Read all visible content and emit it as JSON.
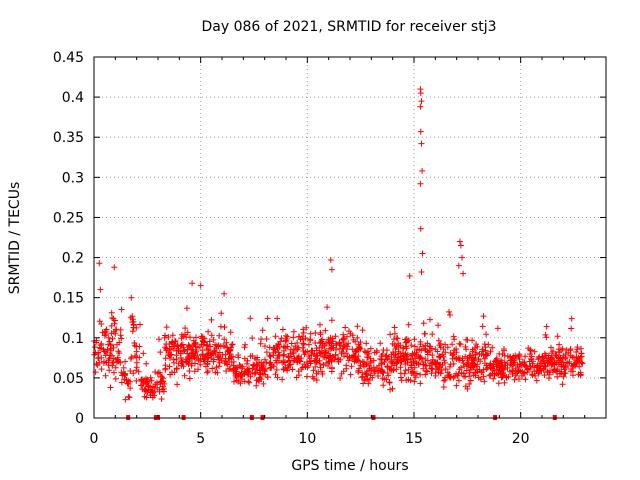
{
  "chart_data": {
    "type": "scatter",
    "title": "Day 086 of 2021, SRMTID for receiver stj3",
    "xlabel": "GPS time / hours",
    "ylabel": "SRMTID / TECUs",
    "xlim": [
      0,
      24
    ],
    "ylim": [
      0,
      0.45
    ],
    "x_ticks": [
      0,
      5,
      10,
      15,
      20
    ],
    "x_tick_labels": [
      "0",
      "5",
      "10",
      "15",
      "20"
    ],
    "y_ticks": [
      0,
      0.05,
      0.1,
      0.15,
      0.2,
      0.25,
      0.3,
      0.35,
      0.4,
      0.45
    ],
    "y_tick_labels": [
      "0",
      "0.05",
      "0.1",
      "0.15",
      "0.2",
      "0.25",
      "0.3",
      "0.35",
      "0.4",
      "0.45"
    ],
    "grid": true,
    "marker": "plus",
    "color": "#ff0000",
    "x_range": [
      0.0,
      22.9
    ],
    "typical_range": [
      0.02,
      0.15
    ],
    "baseline_markers_x": [
      1.6,
      2.9,
      3.0,
      4.2,
      7.4,
      7.9,
      13.1,
      18.8,
      21.6
    ],
    "notable_points": [
      {
        "x": 0.25,
        "y": 0.193
      },
      {
        "x": 0.3,
        "y": 0.16
      },
      {
        "x": 0.95,
        "y": 0.188
      },
      {
        "x": 1.75,
        "y": 0.15
      },
      {
        "x": 4.6,
        "y": 0.168
      },
      {
        "x": 5.0,
        "y": 0.165
      },
      {
        "x": 6.1,
        "y": 0.155
      },
      {
        "x": 11.1,
        "y": 0.197
      },
      {
        "x": 11.15,
        "y": 0.185
      },
      {
        "x": 14.8,
        "y": 0.177
      },
      {
        "x": 15.3,
        "y": 0.41
      },
      {
        "x": 15.32,
        "y": 0.405
      },
      {
        "x": 15.35,
        "y": 0.395
      },
      {
        "x": 15.3,
        "y": 0.388
      },
      {
        "x": 15.32,
        "y": 0.357
      },
      {
        "x": 15.35,
        "y": 0.342
      },
      {
        "x": 15.38,
        "y": 0.308
      },
      {
        "x": 15.3,
        "y": 0.292
      },
      {
        "x": 15.32,
        "y": 0.236
      },
      {
        "x": 15.4,
        "y": 0.205
      },
      {
        "x": 15.35,
        "y": 0.182
      },
      {
        "x": 17.15,
        "y": 0.22
      },
      {
        "x": 17.2,
        "y": 0.215
      },
      {
        "x": 17.25,
        "y": 0.2
      },
      {
        "x": 17.1,
        "y": 0.19
      },
      {
        "x": 17.3,
        "y": 0.18
      }
    ],
    "segments": [
      {
        "x0": 0.0,
        "x1": 1.3,
        "mean": 0.085,
        "spread": 0.045,
        "count": 90
      },
      {
        "x0": 1.3,
        "x1": 1.7,
        "mean": 0.045,
        "spread": 0.02,
        "count": 20
      },
      {
        "x0": 1.7,
        "x1": 2.2,
        "mean": 0.09,
        "spread": 0.04,
        "count": 30
      },
      {
        "x0": 2.2,
        "x1": 3.3,
        "mean": 0.04,
        "spread": 0.015,
        "count": 70
      },
      {
        "x0": 3.3,
        "x1": 6.5,
        "mean": 0.08,
        "spread": 0.03,
        "count": 230
      },
      {
        "x0": 6.5,
        "x1": 8.0,
        "mean": 0.06,
        "spread": 0.02,
        "count": 100
      },
      {
        "x0": 8.0,
        "x1": 10.5,
        "mean": 0.075,
        "spread": 0.035,
        "count": 170
      },
      {
        "x0": 10.5,
        "x1": 12.5,
        "mean": 0.08,
        "spread": 0.03,
        "count": 150
      },
      {
        "x0": 12.5,
        "x1": 14.0,
        "mean": 0.065,
        "spread": 0.025,
        "count": 100
      },
      {
        "x0": 14.0,
        "x1": 16.0,
        "mean": 0.075,
        "spread": 0.03,
        "count": 150
      },
      {
        "x0": 16.0,
        "x1": 18.5,
        "mean": 0.07,
        "spread": 0.03,
        "count": 170
      },
      {
        "x0": 18.5,
        "x1": 21.5,
        "mean": 0.065,
        "spread": 0.02,
        "count": 200
      },
      {
        "x0": 21.5,
        "x1": 22.9,
        "mean": 0.07,
        "spread": 0.025,
        "count": 100
      }
    ]
  }
}
